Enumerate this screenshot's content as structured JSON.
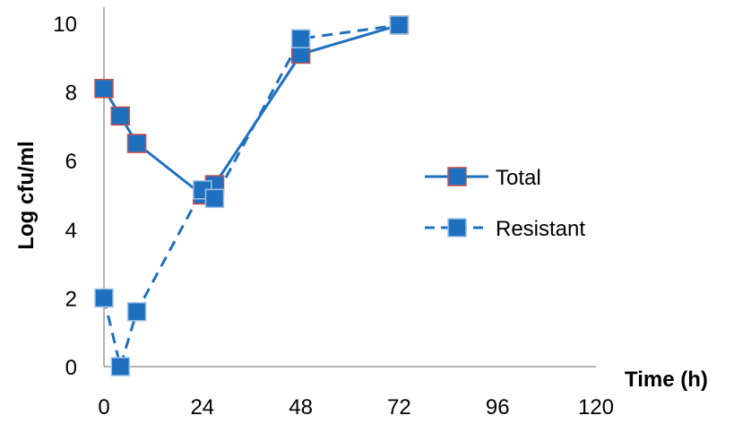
{
  "chart_data": {
    "type": "line",
    "xlabel": "Time (h)",
    "ylabel": "Log cfu/ml",
    "xlim": [
      0,
      120
    ],
    "ylim": [
      0,
      10
    ],
    "xticks": [
      0,
      24,
      48,
      72,
      96,
      120
    ],
    "yticks": [
      0,
      2,
      4,
      6,
      8,
      10
    ],
    "grid": false,
    "legend_position": "right",
    "series": [
      {
        "name": "Total",
        "line_style": "solid",
        "color": "#1f6fbf",
        "marker_edge": "#c0504d",
        "points": [
          [
            0,
            8.1
          ],
          [
            4,
            7.3
          ],
          [
            8,
            6.5
          ],
          [
            24,
            5.0
          ],
          [
            27,
            5.3
          ],
          [
            48,
            9.1
          ],
          [
            72,
            9.95
          ]
        ]
      },
      {
        "name": "Resistant",
        "line_style": "dashed",
        "color": "#1f6fbf",
        "marker_edge": "#9dc3e6",
        "points": [
          [
            0,
            2.0
          ],
          [
            4,
            0.0
          ],
          [
            8,
            1.6
          ],
          [
            24,
            5.15
          ],
          [
            27,
            4.9
          ],
          [
            48,
            9.55
          ],
          [
            72,
            9.95
          ]
        ]
      }
    ]
  }
}
